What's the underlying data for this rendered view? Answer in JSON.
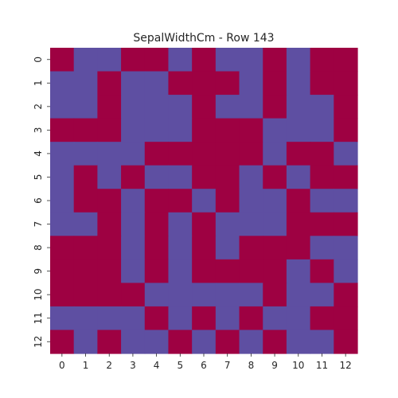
{
  "chart_data": {
    "type": "heatmap",
    "title": "SepalWidthCm - Row 143",
    "xlabel": "",
    "ylabel": "",
    "x_categories": [
      "0",
      "1",
      "2",
      "3",
      "4",
      "5",
      "6",
      "7",
      "8",
      "9",
      "10",
      "11",
      "12"
    ],
    "y_categories": [
      "0",
      "1",
      "2",
      "3",
      "4",
      "5",
      "6",
      "7",
      "8",
      "9",
      "10",
      "11",
      "12"
    ],
    "colorbar": false,
    "grid": false,
    "colors": {
      "high": "#9e0142",
      "low": "#5e4fa2"
    },
    "values": [
      [
        1,
        0,
        0,
        1,
        1,
        0,
        1,
        0,
        0,
        1,
        0,
        1,
        1
      ],
      [
        0,
        0,
        1,
        0,
        0,
        1,
        1,
        1,
        0,
        1,
        0,
        1,
        1
      ],
      [
        0,
        0,
        1,
        0,
        0,
        0,
        1,
        0,
        0,
        1,
        0,
        0,
        1
      ],
      [
        1,
        1,
        1,
        0,
        0,
        0,
        1,
        1,
        1,
        0,
        0,
        0,
        1
      ],
      [
        0,
        0,
        0,
        0,
        1,
        1,
        1,
        1,
        1,
        0,
        1,
        1,
        0
      ],
      [
        0,
        1,
        0,
        1,
        0,
        0,
        1,
        1,
        0,
        1,
        0,
        1,
        1
      ],
      [
        0,
        1,
        1,
        0,
        1,
        1,
        0,
        1,
        0,
        0,
        1,
        0,
        0
      ],
      [
        0,
        0,
        1,
        0,
        1,
        0,
        1,
        0,
        0,
        0,
        1,
        1,
        1
      ],
      [
        1,
        1,
        1,
        0,
        1,
        0,
        1,
        0,
        1,
        1,
        1,
        0,
        0
      ],
      [
        1,
        1,
        1,
        0,
        1,
        0,
        1,
        1,
        1,
        1,
        0,
        1,
        0
      ],
      [
        1,
        1,
        1,
        1,
        0,
        0,
        0,
        0,
        0,
        1,
        0,
        0,
        1
      ],
      [
        0,
        0,
        0,
        0,
        1,
        0,
        1,
        0,
        1,
        0,
        0,
        1,
        1
      ],
      [
        1,
        0,
        1,
        0,
        0,
        1,
        0,
        1,
        0,
        1,
        0,
        0,
        1
      ]
    ]
  }
}
